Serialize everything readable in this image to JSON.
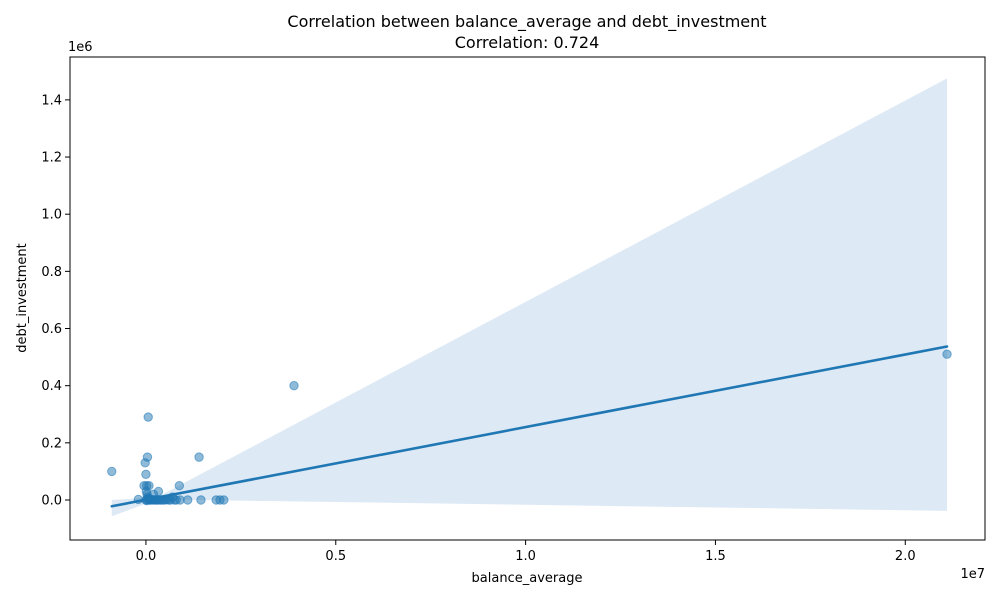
{
  "chart_data": {
    "type": "scatter",
    "title": "Correlation between balance_average and debt_investment",
    "subtitle": "Correlation: 0.724",
    "xlabel": "balance_average",
    "ylabel": "debt_investment",
    "x_offset_label": "1e7",
    "y_offset_label": "1e6",
    "xlim": [
      -2000000,
      22100000
    ],
    "ylim": [
      -140000,
      1550000
    ],
    "x_ticks": [
      0,
      5000000,
      10000000,
      15000000,
      20000000
    ],
    "x_tick_labels": [
      "0.0",
      "0.5",
      "1.0",
      "1.5",
      "2.0"
    ],
    "y_ticks": [
      0,
      200000,
      400000,
      600000,
      800000,
      1000000,
      1200000,
      1400000
    ],
    "y_tick_labels": [
      "0.0",
      "0.2",
      "0.4",
      "0.6",
      "0.8",
      "1.0",
      "1.2",
      "1.4"
    ],
    "grid": false,
    "point_color": "#1f77b4",
    "line_color": "#1f77b4",
    "band_color": "#aecbe6",
    "points": [
      {
        "x": -900000,
        "y": 100000
      },
      {
        "x": -200000,
        "y": 2000
      },
      {
        "x": -50000,
        "y": 50000
      },
      {
        "x": -20000,
        "y": 130000
      },
      {
        "x": 0,
        "y": 90000
      },
      {
        "x": 20000,
        "y": 50000
      },
      {
        "x": 40000,
        "y": 150000
      },
      {
        "x": 60000,
        "y": 290000
      },
      {
        "x": 80000,
        "y": 50000
      },
      {
        "x": 10000,
        "y": 30000
      },
      {
        "x": 30000,
        "y": 20000
      },
      {
        "x": 50000,
        "y": 10000
      },
      {
        "x": 70000,
        "y": 5000
      },
      {
        "x": 90000,
        "y": 2000
      },
      {
        "x": 0,
        "y": 0
      },
      {
        "x": 20000,
        "y": -2000
      },
      {
        "x": 40000,
        "y": 1000
      },
      {
        "x": 100000,
        "y": 0
      },
      {
        "x": 120000,
        "y": 0
      },
      {
        "x": 150000,
        "y": 2000
      },
      {
        "x": 180000,
        "y": 0
      },
      {
        "x": 200000,
        "y": 20000
      },
      {
        "x": 220000,
        "y": 0
      },
      {
        "x": 250000,
        "y": 1000
      },
      {
        "x": 280000,
        "y": 0
      },
      {
        "x": 300000,
        "y": 0
      },
      {
        "x": 330000,
        "y": 30000
      },
      {
        "x": 360000,
        "y": 0
      },
      {
        "x": 400000,
        "y": 0
      },
      {
        "x": 450000,
        "y": 0
      },
      {
        "x": 500000,
        "y": 0
      },
      {
        "x": 550000,
        "y": 2000
      },
      {
        "x": 600000,
        "y": 0
      },
      {
        "x": 650000,
        "y": 0
      },
      {
        "x": 700000,
        "y": 10000
      },
      {
        "x": 750000,
        "y": 0
      },
      {
        "x": 800000,
        "y": 0
      },
      {
        "x": 900000,
        "y": 0
      },
      {
        "x": 880000,
        "y": 50000
      },
      {
        "x": 1100000,
        "y": 0
      },
      {
        "x": 1400000,
        "y": 150000
      },
      {
        "x": 1450000,
        "y": 0
      },
      {
        "x": 1850000,
        "y": 0
      },
      {
        "x": 1950000,
        "y": 0
      },
      {
        "x": 2050000,
        "y": 0
      },
      {
        "x": 3900000,
        "y": 400000
      },
      {
        "x": 21100000,
        "y": 510000
      }
    ],
    "regression": {
      "x": [
        -900000,
        21100000
      ],
      "y": [
        -22000,
        537000
      ]
    },
    "confidence_band": {
      "x": [
        -900000,
        21100000
      ],
      "upper": [
        0,
        1475000
      ],
      "lower": [
        -57000,
        -38000
      ],
      "x_mid": 300000,
      "mid_value": 8000
    }
  }
}
